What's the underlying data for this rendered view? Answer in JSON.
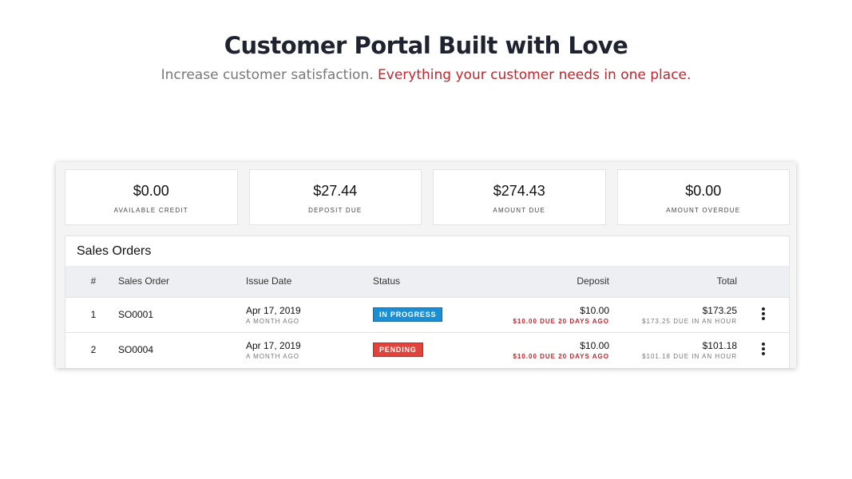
{
  "hero": {
    "title": "Customer Portal Built with Love",
    "subtitle_plain": "Increase customer satisfaction.",
    "subtitle_accent": "Everything your customer needs in one place.",
    "accent_color": "#c0262d"
  },
  "summary": [
    {
      "value": "$0.00",
      "label": "AVAILABLE CREDIT"
    },
    {
      "value": "$27.44",
      "label": "DEPOSIT DUE"
    },
    {
      "value": "$274.43",
      "label": "AMOUNT DUE"
    },
    {
      "value": "$0.00",
      "label": "AMOUNT OVERDUE"
    }
  ],
  "orders": {
    "title": "Sales Orders",
    "columns": {
      "num": "#",
      "order": "Sales Order",
      "date": "Issue Date",
      "status": "Status",
      "deposit": "Deposit",
      "total": "Total"
    },
    "rows": [
      {
        "num": "1",
        "order": "SO0001",
        "date": "Apr 17, 2019",
        "date_rel": "A MONTH AGO",
        "status": "IN PROGRESS",
        "status_color": "#1b8fd6",
        "deposit": "$10.00",
        "deposit_note": "$10.00 DUE 20 DAYS AGO",
        "total": "$173.25",
        "total_note": "$173.25 DUE IN AN HOUR",
        "menu_icon": "more-vertical-icon"
      },
      {
        "num": "2",
        "order": "SO0004",
        "date": "Apr 17, 2019",
        "date_rel": "A MONTH AGO",
        "status": "PENDING",
        "status_color": "#e0433b",
        "deposit": "$10.00",
        "deposit_note": "$10.00 DUE 20 DAYS AGO",
        "total": "$101.18",
        "total_note": "$101.18 DUE IN AN HOUR",
        "menu_icon": "more-vertical-icon"
      }
    ]
  }
}
